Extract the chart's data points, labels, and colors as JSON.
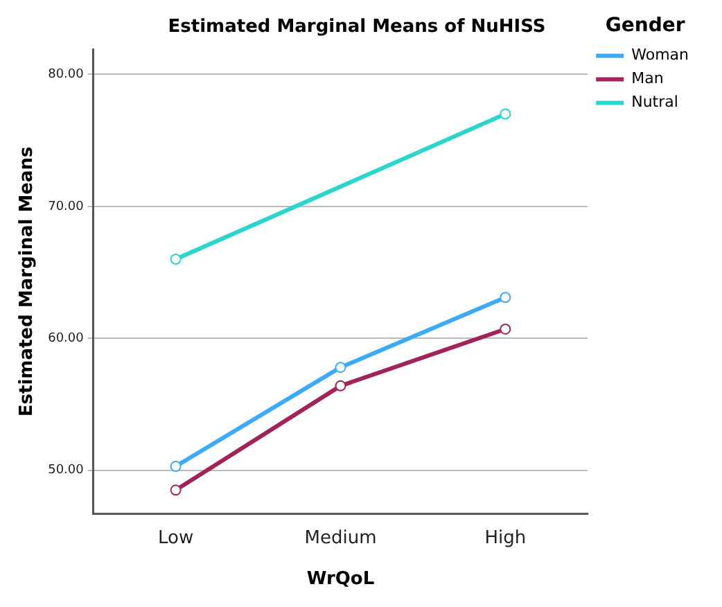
{
  "chart_data": {
    "type": "line",
    "title": "Estimated Marginal Means of NuHISS",
    "xlabel": "WrQoL",
    "ylabel": "Estimated Marginal Means",
    "legend_title": "Gender",
    "categories": [
      "Low",
      "Medium",
      "High"
    ],
    "series": [
      {
        "name": "Woman",
        "color": "#3ea9f5",
        "values": [
          50.3,
          57.8,
          63.1
        ]
      },
      {
        "name": "Man",
        "color": "#a0245a",
        "values": [
          48.5,
          56.4,
          60.7
        ]
      },
      {
        "name": "Nutral",
        "color": "#2bd4cc",
        "values": [
          66.0,
          null,
          77.0
        ]
      }
    ],
    "ylim": [
      46.7,
      81.9
    ],
    "yticks": [
      {
        "value": 50,
        "label": "50.00"
      },
      {
        "value": 60,
        "label": "60.00"
      },
      {
        "value": 70,
        "label": "70.00"
      },
      {
        "value": 80,
        "label": "80.00"
      }
    ],
    "grid": "y",
    "legend": "top right",
    "marker": "circle",
    "line_style": "solid"
  }
}
